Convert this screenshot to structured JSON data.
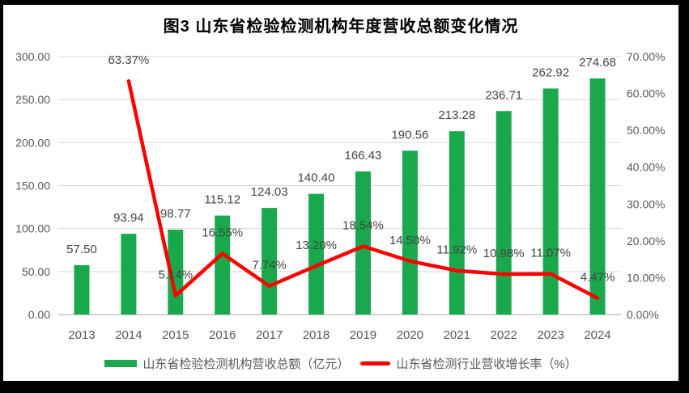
{
  "colors": {
    "bar": "#1AA84D",
    "line": "#FE0000",
    "grid": "#D9D9D9",
    "axis_line": "#D2D2D2",
    "tick_text": "#595959",
    "data_label_text": "#444444",
    "title_text": "#000000",
    "background": "#FFFFFF",
    "frame": "#000000"
  },
  "chart_data": {
    "type": "bar",
    "combo": "bar+line",
    "title": "图3  山东省检验检测机构年度营收总额变化情况",
    "categories": [
      "2013",
      "2014",
      "2015",
      "2016",
      "2017",
      "2018",
      "2019",
      "2020",
      "2021",
      "2022",
      "2023",
      "2024"
    ],
    "series": [
      {
        "name": "山东省检验检测机构营收总额（亿元）",
        "chart_type": "bar",
        "axis": "left",
        "values": [
          57.5,
          93.94,
          98.77,
          115.12,
          124.03,
          140.4,
          166.43,
          190.56,
          213.28,
          236.71,
          262.92,
          274.68
        ],
        "data_labels": [
          "57.50",
          "93.94",
          "98.77",
          "115.12",
          "124.03",
          "140.40",
          "166.43",
          "190.56",
          "213.28",
          "236.71",
          "262.92",
          "274.68"
        ]
      },
      {
        "name": "山东省检测行业营收增长率（%）",
        "chart_type": "line",
        "axis": "right",
        "values": [
          null,
          63.37,
          5.14,
          16.55,
          7.74,
          13.2,
          18.54,
          14.5,
          11.92,
          10.98,
          11.07,
          4.47
        ],
        "data_labels": [
          "",
          "63.37%",
          "5.14%",
          "16.55%",
          "7.74%",
          "13.20%",
          "18.54%",
          "14.50%",
          "11.92%",
          "10.98%",
          "11.07%",
          "4.47%"
        ]
      }
    ],
    "left_axis": {
      "min": 0,
      "max": 300,
      "step": 50,
      "ticks": [
        "0.00",
        "50.00",
        "100.00",
        "150.00",
        "200.00",
        "250.00",
        "300.00"
      ]
    },
    "right_axis": {
      "min": 0,
      "max": 70,
      "step": 10,
      "ticks": [
        "0.00%",
        "10.00%",
        "20.00%",
        "30.00%",
        "40.00%",
        "50.00%",
        "60.00%",
        "70.00%"
      ]
    },
    "grid": true,
    "legend_position": "bottom"
  }
}
